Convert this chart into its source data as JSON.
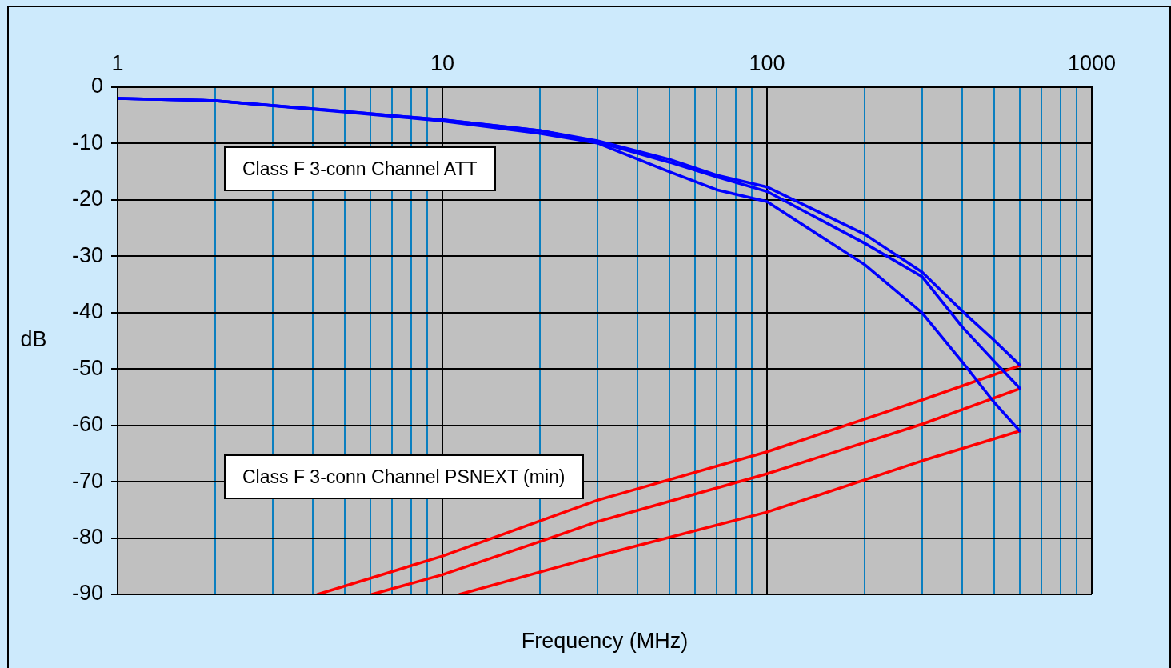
{
  "chart_data": {
    "type": "line",
    "xlabel": "Frequency (MHz)",
    "ylabel": "dB",
    "log": "x",
    "xlim": [
      1,
      1000
    ],
    "xticks": [
      1,
      {
        "value": 2,
        "label": null
      },
      {
        "value": 3,
        "label": null
      },
      {
        "value": 4,
        "label": null
      },
      {
        "value": 5,
        "label": null
      },
      {
        "value": 6,
        "label": null
      },
      {
        "value": 7,
        "label": null
      },
      {
        "value": 8,
        "label": null
      },
      {
        "value": 9,
        "label": null
      },
      10,
      {
        "value": 20,
        "label": null
      },
      {
        "value": 30,
        "label": null
      },
      {
        "value": 40,
        "label": null
      },
      {
        "value": 50,
        "label": null
      },
      {
        "value": 60,
        "label": null
      },
      {
        "value": 70,
        "label": null
      },
      {
        "value": 80,
        "label": null
      },
      {
        "value": 90,
        "label": null
      },
      100,
      {
        "value": 200,
        "label": null
      },
      {
        "value": 300,
        "label": null
      },
      {
        "value": 400,
        "label": null
      },
      {
        "value": 500,
        "label": null
      },
      {
        "value": 600,
        "label": null
      },
      {
        "value": 700,
        "label": null
      },
      {
        "value": 800,
        "label": null
      },
      {
        "value": 900,
        "label": null
      },
      1000
    ],
    "ylim": [
      -90,
      0
    ],
    "yticks": [
      0,
      -10,
      -20,
      -30,
      -40,
      -50,
      -60,
      -70,
      -80,
      -90
    ],
    "grid": true,
    "legend": false,
    "marker": "none",
    "line_style": "solid",
    "series": [
      {
        "color": "#0000ff",
        "x": [
          1,
          2,
          5,
          10,
          20,
          30,
          50,
          70,
          100,
          200,
          300,
          400,
          500,
          600
        ],
        "values": [
          -2.0,
          -2.4,
          -4.3,
          -5.8,
          -7.7,
          -9.5,
          -12.8,
          -15.6,
          -17.7,
          -26.1,
          -32.8,
          -39.8,
          -44.9,
          -49.3
        ]
      },
      {
        "color": "#0000ff",
        "x": [
          1,
          2,
          5,
          10,
          20,
          30,
          50,
          70,
          100,
          200,
          300,
          400,
          500,
          600
        ],
        "values": [
          -2.0,
          -2.4,
          -4.3,
          -5.8,
          -7.7,
          -9.7,
          -13.3,
          -15.9,
          -18.5,
          -27.7,
          -33.6,
          -42.6,
          -48.6,
          -53.4
        ]
      },
      {
        "color": "#0000ff",
        "x": [
          1,
          2,
          5,
          10,
          20,
          30,
          50,
          70,
          100,
          200,
          300,
          400,
          500,
          600
        ],
        "values": [
          -2.0,
          -2.4,
          -4.4,
          -6.0,
          -8.2,
          -9.9,
          -15.0,
          -18.2,
          -20.3,
          -31.5,
          -40.0,
          -48.8,
          -55.9,
          -61.0
        ]
      },
      {
        "color": "#ff0000",
        "x": [
          4.13,
          10,
          30,
          100,
          300,
          600
        ],
        "values": [
          -90,
          -83.2,
          -73.3,
          -64.7,
          -55.5,
          -49.4
        ]
      },
      {
        "color": "#ff0000",
        "x": [
          6.07,
          10,
          20,
          30,
          100,
          300,
          600
        ],
        "values": [
          -90,
          -86.5,
          -80.6,
          -77.1,
          -68.6,
          -59.8,
          -53.5
        ]
      },
      {
        "color": "#ff0000",
        "x": [
          11.3,
          30,
          100,
          300,
          600
        ],
        "values": [
          -90,
          -83.2,
          -75.4,
          -66.3,
          -61.0
        ]
      }
    ],
    "annotations": [
      "Class F 3-conn Channel ATT",
      "Class F 3-conn Channel PSNEXT (min)"
    ]
  }
}
